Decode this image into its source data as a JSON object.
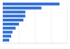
{
  "chart_data": {
    "type": "bar",
    "orientation": "horizontal",
    "categories": [
      null,
      null,
      null,
      null,
      null,
      null,
      null,
      null,
      null,
      null
    ],
    "values": [
      88,
      60,
      35,
      35,
      32,
      25,
      20,
      15,
      13,
      10
    ],
    "color": "#2f6fd6",
    "xlim": [
      0,
      100
    ],
    "xticks": [
      0,
      25,
      50,
      75,
      100
    ],
    "grid": true,
    "tick_labels": false
  }
}
